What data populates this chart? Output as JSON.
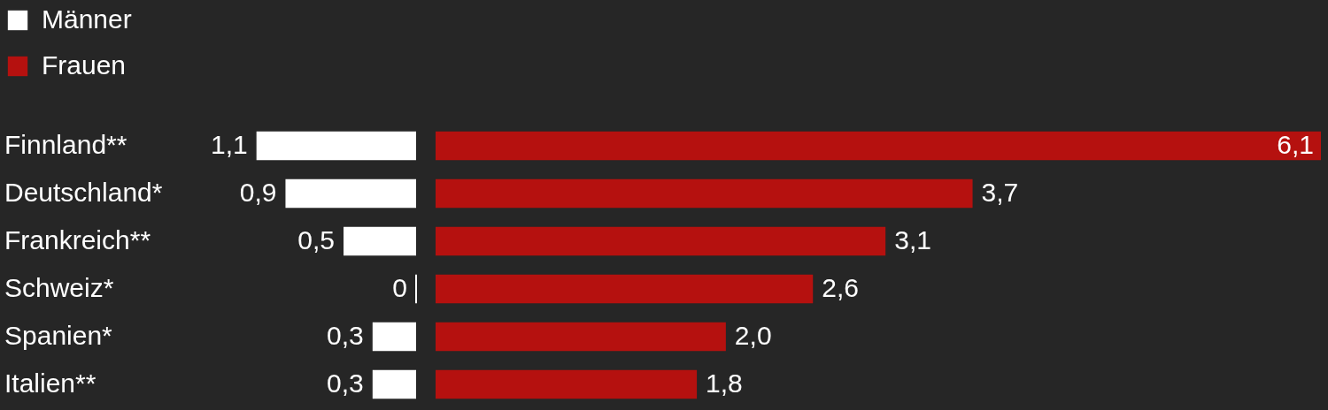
{
  "chart_data": [
    {
      "type": "bar",
      "orientation": "horizontal",
      "legend": "top left",
      "categories": [
        "Finnland**",
        "Deutschland*",
        "Frankreich**",
        "Schweiz*",
        "Spanien*",
        "Italien**"
      ],
      "series": [
        {
          "name": "Männer",
          "color": "#ffffff",
          "values": [
            1.1,
            0.9,
            0.5,
            0,
            0.3,
            0.3
          ],
          "value_labels": [
            "1,1",
            "0,9",
            "0,5",
            "0",
            "0,3",
            "0,3"
          ]
        }
      ]
    },
    {
      "type": "bar",
      "orientation": "horizontal",
      "legend": "top left",
      "categories": [
        null,
        null,
        null,
        null,
        null,
        null
      ],
      "series": [
        {
          "name": "Frauen",
          "color": "#b5110f",
          "values": [
            6.1,
            3.7,
            3.1,
            2.6,
            2.0,
            1.8
          ],
          "value_labels": [
            "6,1",
            "3,7",
            "3,1",
            "2,6",
            "2,0",
            "1,8"
          ]
        }
      ]
    }
  ]
}
